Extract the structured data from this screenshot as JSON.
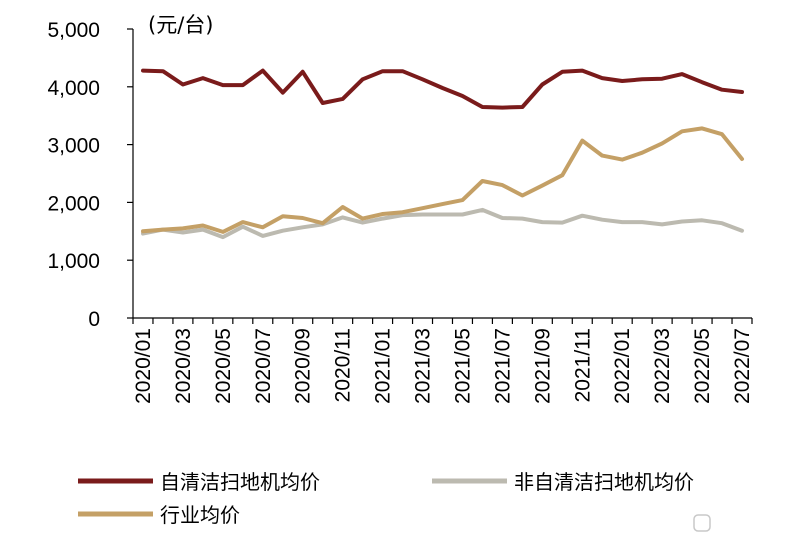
{
  "chart_data": {
    "type": "line",
    "unit_label": "(元/台)",
    "ylim": [
      0,
      5000
    ],
    "y_ticks": [
      "5,000",
      "4,000",
      "3,000",
      "2,000",
      "1,000",
      "0"
    ],
    "y_tick_values": [
      5000,
      4000,
      3000,
      2000,
      1000,
      0
    ],
    "x": [
      "2020/01",
      "2020/02",
      "2020/03",
      "2020/04",
      "2020/05",
      "2020/06",
      "2020/07",
      "2020/08",
      "2020/09",
      "2020/10",
      "2020/11",
      "2020/12",
      "2021/01",
      "2021/02",
      "2021/03",
      "2021/04",
      "2021/05",
      "2021/06",
      "2021/07",
      "2021/08",
      "2021/09",
      "2021/10",
      "2021/11",
      "2021/12",
      "2022/01",
      "2022/02",
      "2022/03",
      "2022/04",
      "2022/05",
      "2022/06",
      "2022/07"
    ],
    "x_tick_labels": [
      "2020/01",
      "2020/03",
      "2020/05",
      "2020/07",
      "2020/09",
      "2020/11",
      "2021/01",
      "2021/03",
      "2021/05",
      "2021/07",
      "2021/09",
      "2021/11",
      "2022/01",
      "2022/03",
      "2022/05",
      "2022/07"
    ],
    "series": [
      {
        "name": "自清洁扫地机均价",
        "color": "#7a1b1b",
        "values": [
          4280,
          4270,
          4040,
          4150,
          4030,
          4030,
          4280,
          3900,
          4260,
          3720,
          3790,
          4130,
          4270,
          4270,
          4130,
          3980,
          3840,
          3650,
          3640,
          3650,
          4040,
          4260,
          4280,
          4150,
          4100,
          4130,
          4140,
          4220,
          4080,
          3950,
          3910
        ]
      },
      {
        "name": "非自清洁扫地机均价",
        "color": "#bcbab0",
        "values": [
          1460,
          1530,
          1480,
          1530,
          1400,
          1580,
          1420,
          1510,
          1570,
          1620,
          1740,
          1650,
          1720,
          1780,
          1790,
          1790,
          1790,
          1870,
          1730,
          1720,
          1660,
          1650,
          1770,
          1700,
          1660,
          1660,
          1620,
          1670,
          1690,
          1640,
          1510
        ]
      },
      {
        "name": "行业均价",
        "color": "#c4a066",
        "values": [
          1500,
          1530,
          1550,
          1600,
          1490,
          1660,
          1570,
          1760,
          1730,
          1640,
          1920,
          1720,
          1800,
          1830,
          1900,
          1970,
          2040,
          2370,
          2300,
          2120,
          2290,
          2470,
          3070,
          2810,
          2740,
          2860,
          3020,
          3230,
          3280,
          3180,
          2750
        ]
      }
    ],
    "legend": {
      "items": [
        {
          "label": "自清洁扫地机均价",
          "color": "#7a1b1b"
        },
        {
          "label": "非自清洁扫地机均价",
          "color": "#bcbab0"
        },
        {
          "label": "行业均价",
          "color": "#c4a066"
        }
      ]
    }
  }
}
